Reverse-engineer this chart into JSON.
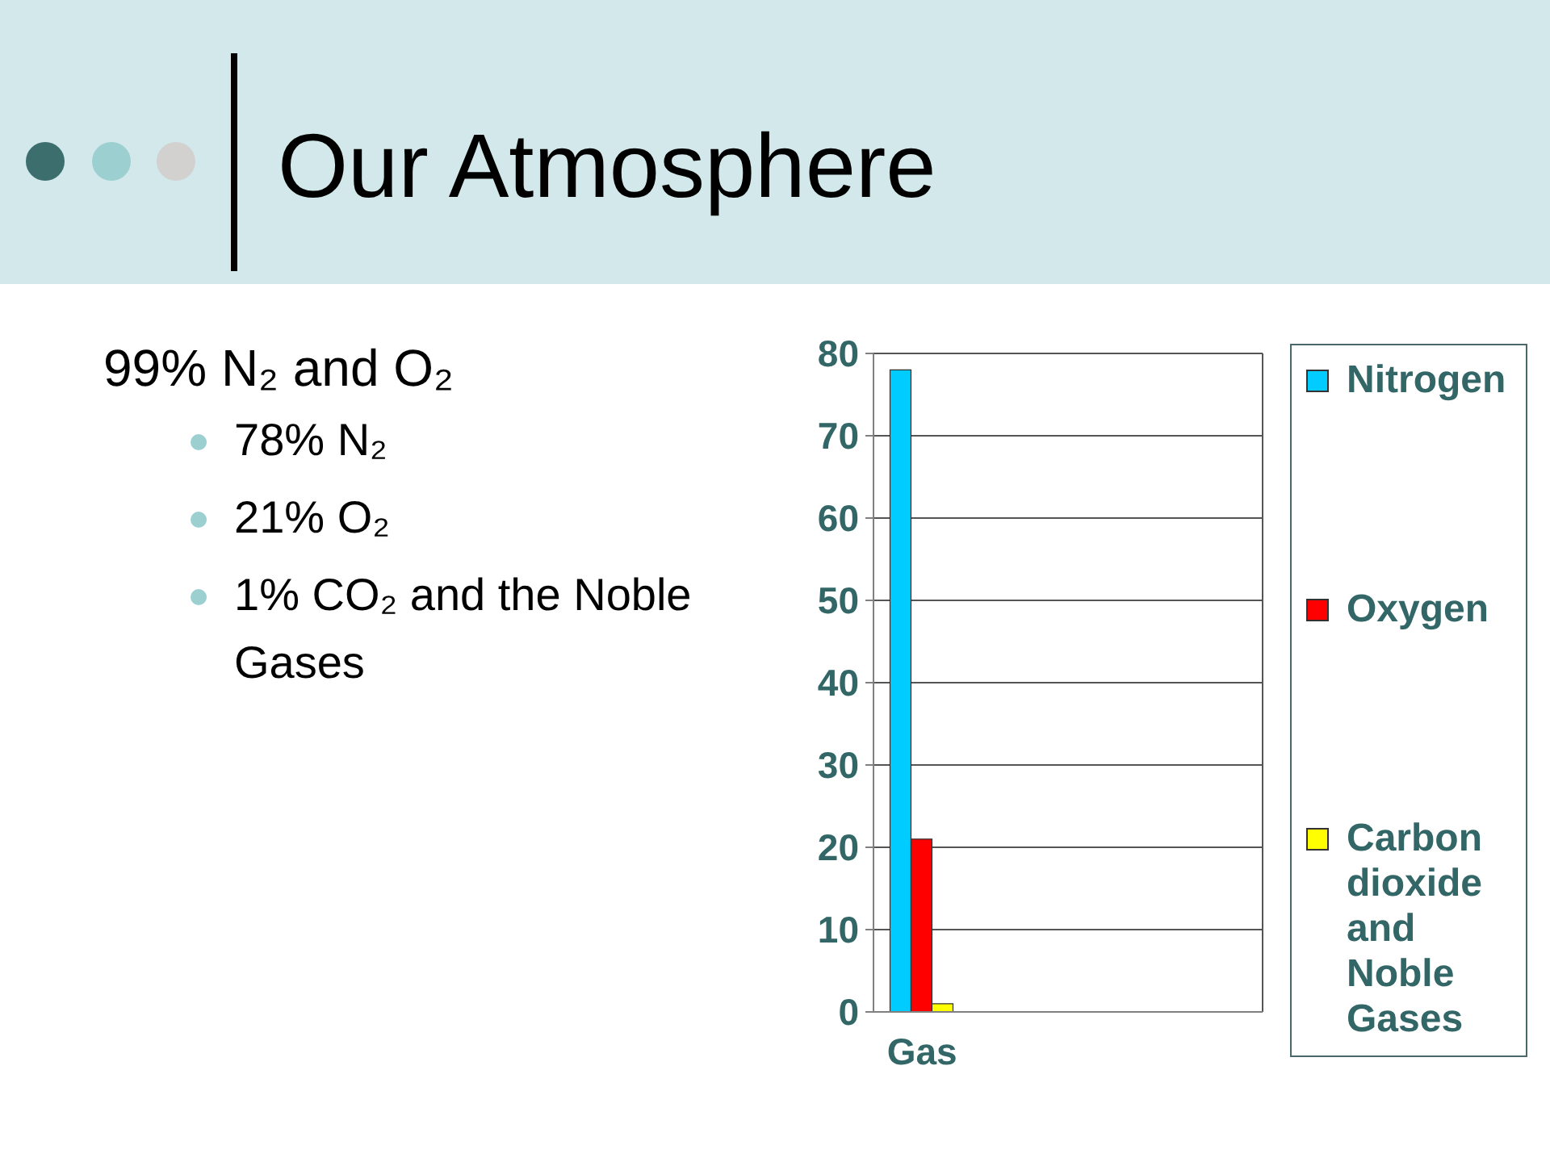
{
  "chart_data": {
    "type": "bar",
    "title": "Our Atmosphere",
    "annotations": [
      "99% N₂ and O₂",
      "78% N₂",
      "21% O₂",
      "1% CO₂ and the Noble Gases"
    ],
    "categories": [
      "Gas",
      null,
      null,
      null
    ],
    "series": [
      {
        "name": "Nitrogen",
        "color": "#00ccff",
        "values": [
          78,
          null,
          null,
          null
        ]
      },
      {
        "name": "Oxygen",
        "color": "#ff0000",
        "values": [
          21,
          null,
          null,
          null
        ]
      },
      {
        "name": "Carbon dioxide and Noble Gases",
        "color": "#ffff00",
        "values": [
          1,
          null,
          null,
          null
        ]
      }
    ],
    "ylim": [
      0,
      80
    ],
    "yticks": [
      0,
      10,
      20,
      30,
      40,
      50,
      60,
      70,
      80
    ],
    "grid": "y",
    "legend": "right"
  }
}
